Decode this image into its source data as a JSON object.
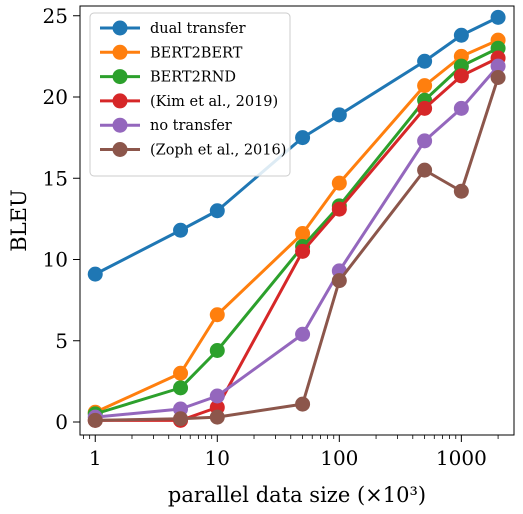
{
  "chart_data": {
    "type": "line",
    "xlabel": "parallel data size (×10³)",
    "ylabel": "BLEU",
    "xscale": "log",
    "xlim": [
      0.75,
      2700
    ],
    "ylim": [
      -0.8,
      25.6
    ],
    "grid": false,
    "legend_position": "top-left",
    "x_ticks": [
      {
        "value": 1,
        "label": "1"
      },
      {
        "value": 10,
        "label": "10"
      },
      {
        "value": 100,
        "label": "100"
      },
      {
        "value": 1000,
        "label": "1000"
      }
    ],
    "y_ticks": [
      {
        "value": 0,
        "label": "0"
      },
      {
        "value": 5,
        "label": "5"
      },
      {
        "value": 10,
        "label": "10"
      },
      {
        "value": 15,
        "label": "15"
      },
      {
        "value": 20,
        "label": "20"
      },
      {
        "value": 25,
        "label": "25"
      }
    ],
    "series": [
      {
        "name": "dual transfer",
        "color": "#1f77b4",
        "points": [
          [
            1,
            9.1
          ],
          [
            5,
            11.8
          ],
          [
            10,
            13.0
          ],
          [
            50,
            17.5
          ],
          [
            100,
            18.9
          ],
          [
            500,
            22.2
          ],
          [
            1000,
            23.8
          ],
          [
            2000,
            24.9
          ]
        ]
      },
      {
        "name": "BERT2BERT",
        "color": "#ff7f0e",
        "points": [
          [
            1,
            0.6
          ],
          [
            5,
            3.0
          ],
          [
            10,
            6.6
          ],
          [
            50,
            11.6
          ],
          [
            100,
            14.7
          ],
          [
            500,
            20.7
          ],
          [
            1000,
            22.5
          ],
          [
            2000,
            23.5
          ]
        ]
      },
      {
        "name": "BERT2RND",
        "color": "#2ca02c",
        "points": [
          [
            1,
            0.5
          ],
          [
            5,
            2.1
          ],
          [
            10,
            4.4
          ],
          [
            50,
            10.8
          ],
          [
            100,
            13.3
          ],
          [
            500,
            19.8
          ],
          [
            1000,
            21.9
          ],
          [
            2000,
            23.0
          ]
        ]
      },
      {
        "name": "(Kim et al., 2019)",
        "color": "#d62728",
        "points": [
          [
            1,
            0.1
          ],
          [
            5,
            0.1
          ],
          [
            10,
            0.9
          ],
          [
            50,
            10.5
          ],
          [
            100,
            13.1
          ],
          [
            500,
            19.3
          ],
          [
            1000,
            21.3
          ],
          [
            2000,
            22.4
          ]
        ]
      },
      {
        "name": "no transfer",
        "color": "#9467bd",
        "points": [
          [
            1,
            0.3
          ],
          [
            5,
            0.8
          ],
          [
            10,
            1.6
          ],
          [
            50,
            5.4
          ],
          [
            100,
            9.3
          ],
          [
            500,
            17.3
          ],
          [
            1000,
            19.3
          ],
          [
            2000,
            21.9
          ]
        ]
      },
      {
        "name": "(Zoph et al., 2016)",
        "color": "#8c564b",
        "points": [
          [
            1,
            0.1
          ],
          [
            5,
            0.2
          ],
          [
            10,
            0.3
          ],
          [
            50,
            1.1
          ],
          [
            100,
            8.7
          ],
          [
            500,
            15.5
          ],
          [
            1000,
            14.2
          ],
          [
            2000,
            21.2
          ]
        ]
      }
    ]
  }
}
